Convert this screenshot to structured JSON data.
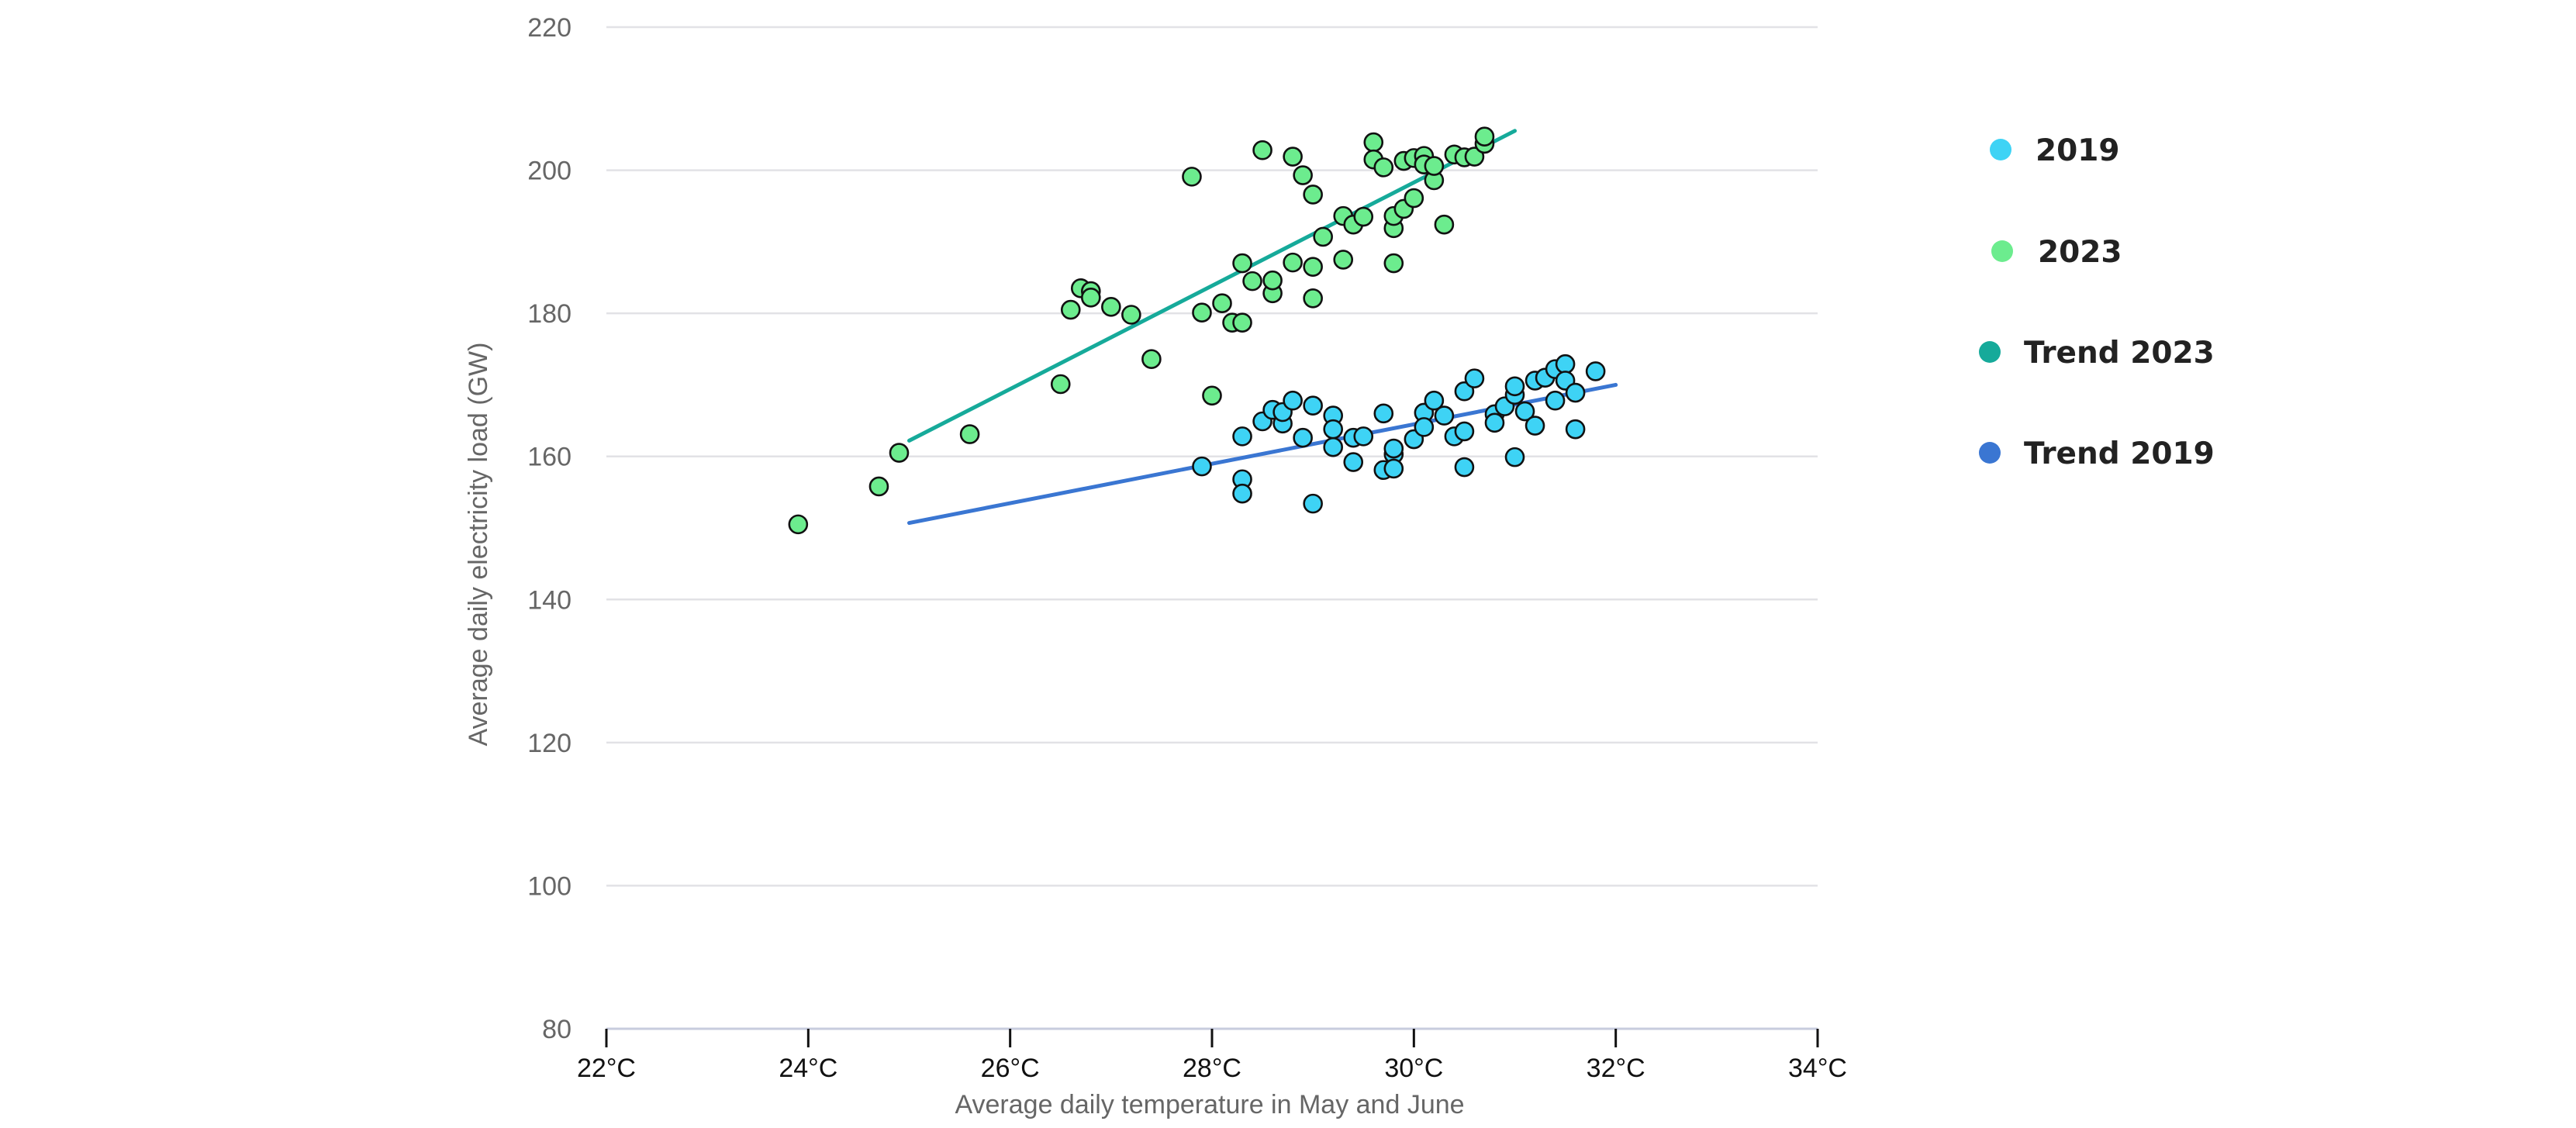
{
  "chart_data": {
    "type": "scatter",
    "title": "",
    "xlabel": "Average daily temperature in May and June",
    "ylabel": "Average daily electricity load (GW)",
    "xlim": [
      22,
      34
    ],
    "ylim": [
      80,
      220
    ],
    "x_ticks": [
      22,
      24,
      26,
      28,
      30,
      32,
      34
    ],
    "x_tick_labels": [
      "22°C",
      "24°C",
      "26°C",
      "28°C",
      "30°C",
      "32°C",
      "34°C"
    ],
    "y_ticks": [
      80,
      100,
      120,
      140,
      160,
      180,
      200,
      220
    ],
    "y_tick_labels": [
      "80",
      "100",
      "120",
      "140",
      "160",
      "180",
      "200",
      "220"
    ],
    "grid": "horizontal",
    "legend_position": "right",
    "series": [
      {
        "name": "2019",
        "kind": "scatter",
        "color": "#3ed3f5",
        "points": [
          [
            27.9,
            158.6
          ],
          [
            28.3,
            162.8
          ],
          [
            28.3,
            156.8
          ],
          [
            28.3,
            154.8
          ],
          [
            28.5,
            164.9
          ],
          [
            28.6,
            166.5
          ],
          [
            28.7,
            164.6
          ],
          [
            28.7,
            166.2
          ],
          [
            28.8,
            167.8
          ],
          [
            28.9,
            162.6
          ],
          [
            29.0,
            167.1
          ],
          [
            29.0,
            153.4
          ],
          [
            29.2,
            165.7
          ],
          [
            29.2,
            163.8
          ],
          [
            29.2,
            161.3
          ],
          [
            29.4,
            162.6
          ],
          [
            29.4,
            159.2
          ],
          [
            29.5,
            162.8
          ],
          [
            29.7,
            166.0
          ],
          [
            29.7,
            158.1
          ],
          [
            29.8,
            160.3
          ],
          [
            29.8,
            161.1
          ],
          [
            29.8,
            158.3
          ],
          [
            30.0,
            162.4
          ],
          [
            30.1,
            166.1
          ],
          [
            30.1,
            164.1
          ],
          [
            30.2,
            167.8
          ],
          [
            30.3,
            165.7
          ],
          [
            30.4,
            162.8
          ],
          [
            30.5,
            163.5
          ],
          [
            30.5,
            158.5
          ],
          [
            30.5,
            169.1
          ],
          [
            30.6,
            170.9
          ],
          [
            30.8,
            165.9
          ],
          [
            30.8,
            164.7
          ],
          [
            30.9,
            167.0
          ],
          [
            31.0,
            168.6
          ],
          [
            31.0,
            169.8
          ],
          [
            31.0,
            159.9
          ],
          [
            31.1,
            166.3
          ],
          [
            31.2,
            164.3
          ],
          [
            31.2,
            170.6
          ],
          [
            31.3,
            171.0
          ],
          [
            31.4,
            172.2
          ],
          [
            31.4,
            167.8
          ],
          [
            31.5,
            172.9
          ],
          [
            31.5,
            170.6
          ],
          [
            31.6,
            168.9
          ],
          [
            31.6,
            163.8
          ],
          [
            31.8,
            171.9
          ]
        ]
      },
      {
        "name": "2023",
        "kind": "scatter",
        "color": "#6cec8e",
        "points": [
          [
            23.9,
            150.5
          ],
          [
            24.7,
            155.8
          ],
          [
            24.9,
            160.5
          ],
          [
            25.6,
            163.1
          ],
          [
            26.5,
            170.1
          ],
          [
            26.6,
            180.5
          ],
          [
            26.7,
            183.5
          ],
          [
            26.8,
            183.1
          ],
          [
            26.8,
            182.2
          ],
          [
            27.0,
            180.9
          ],
          [
            27.2,
            179.8
          ],
          [
            27.4,
            173.6
          ],
          [
            27.8,
            199.1
          ],
          [
            27.9,
            180.1
          ],
          [
            28.0,
            168.5
          ],
          [
            28.1,
            181.4
          ],
          [
            28.2,
            178.7
          ],
          [
            28.3,
            178.7
          ],
          [
            28.3,
            187.0
          ],
          [
            28.4,
            184.5
          ],
          [
            28.5,
            202.8
          ],
          [
            28.6,
            182.8
          ],
          [
            28.6,
            184.6
          ],
          [
            28.8,
            201.9
          ],
          [
            28.8,
            187.1
          ],
          [
            28.9,
            199.3
          ],
          [
            29.0,
            196.6
          ],
          [
            29.0,
            186.5
          ],
          [
            29.0,
            182.1
          ],
          [
            29.1,
            190.7
          ],
          [
            29.3,
            187.5
          ],
          [
            29.3,
            193.6
          ],
          [
            29.4,
            192.4
          ],
          [
            29.5,
            193.5
          ],
          [
            29.6,
            203.9
          ],
          [
            29.6,
            201.5
          ],
          [
            29.7,
            200.4
          ],
          [
            29.8,
            191.9
          ],
          [
            29.8,
            193.6
          ],
          [
            29.8,
            187.0
          ],
          [
            29.9,
            194.6
          ],
          [
            29.9,
            201.3
          ],
          [
            30.0,
            196.1
          ],
          [
            30.0,
            201.7
          ],
          [
            30.1,
            202.0
          ],
          [
            30.1,
            200.8
          ],
          [
            30.2,
            198.6
          ],
          [
            30.2,
            200.6
          ],
          [
            30.3,
            192.4
          ],
          [
            30.4,
            202.2
          ],
          [
            30.5,
            201.8
          ],
          [
            30.6,
            201.9
          ],
          [
            30.7,
            203.7
          ],
          [
            30.7,
            204.7
          ]
        ]
      },
      {
        "name": "Trend 2023",
        "kind": "line",
        "color": "#16aa9a",
        "points": [
          [
            25.0,
            162.2
          ],
          [
            31.0,
            205.5
          ]
        ]
      },
      {
        "name": "Trend 2019",
        "kind": "line",
        "color": "#3a76d2",
        "points": [
          [
            25.0,
            150.7
          ],
          [
            32.0,
            170.0
          ]
        ]
      }
    ]
  }
}
